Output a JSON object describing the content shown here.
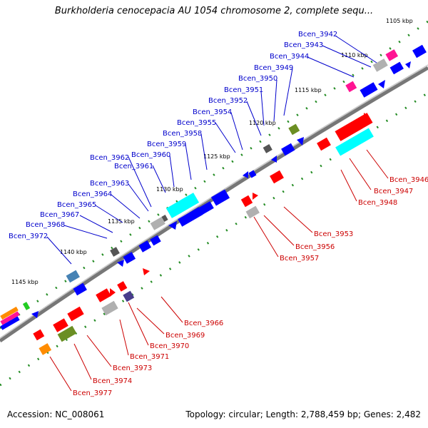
{
  "title": "Burkholderia cenocepacia AU 1054 chromosome 2, complete sequ...",
  "footer": {
    "accession": "Accession: NC_008061",
    "stats": "Topology: circular; Length: 2,788,459 bp; Genes: 2,482"
  },
  "colors": {
    "backbone": "#808080",
    "dots": "#228B22",
    "forward_label": "#0000CC",
    "reverse_label": "#CC0000",
    "blue": "#0000FF",
    "red": "#FF0000",
    "cyan": "#00FFFF",
    "gray": "#B0B0B0",
    "dark_gray": "#555555",
    "magenta": "#FF1493",
    "olive": "#6B8E23",
    "orange": "#FF8C00",
    "steel": "#4682B4",
    "purple": "#483D8B",
    "green": "#22CC22"
  },
  "kbp_ticks": [
    "1105 kbp",
    "1110 kbp",
    "1115 kbp",
    "1120 kbp",
    "1125 kbp",
    "1130 kbp",
    "1135 kbp",
    "1140 kbp",
    "1145 kbp"
  ],
  "forward_labels": [
    "Bcen_3942",
    "Bcen_3943",
    "Bcen_3944",
    "Bcen_3949",
    "Bcen_3950",
    "Bcen_3951",
    "Bcen_3952",
    "Bcen_3954",
    "Bcen_3955",
    "Bcen_3958",
    "Bcen_3959",
    "Bcen_3960",
    "Bcen_3961",
    "Bcen_3962",
    "Bcen_3963",
    "Bcen_3964",
    "Bcen_3965",
    "Bcen_3967",
    "Bcen_3968",
    "Bcen_3972"
  ],
  "reverse_labels": [
    "Bcen_3946",
    "Bcen_3947",
    "Bcen_3948",
    "Bcen_3953",
    "Bcen_3956",
    "Bcen_3957",
    "Bcen_3966",
    "Bcen_3969",
    "Bcen_3970",
    "Bcen_3971",
    "Bcen_3973",
    "Bcen_3974",
    "Bcen_3977"
  ]
}
